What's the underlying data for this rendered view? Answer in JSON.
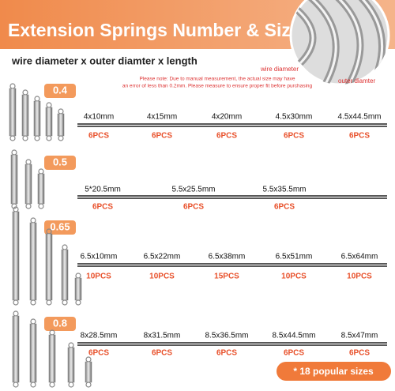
{
  "header": {
    "title": "Extension Springs Number & Size",
    "subtitle": "wire diameter x outer diamter x length",
    "callouts": [
      "wire diameter",
      "outer diamter"
    ],
    "note": [
      "Please note: Due to manual measurement, the actual size may have",
      "an error of less than 0.2mm.  Please measure to ensure proper fit before purchasing"
    ]
  },
  "groups": [
    {
      "wire": "0.4",
      "sizes": [
        "4x10mm",
        "4x15mm",
        "4x20mm",
        "4.5x30mm",
        "4.5x44.5mm"
      ],
      "counts": [
        "6PCS",
        "6PCS",
        "6PCS",
        "6PCS",
        "6PCS"
      ]
    },
    {
      "wire": "0.5",
      "sizes": [
        "5*20.5mm",
        "5.5x25.5mm",
        "5.5x35.5mm"
      ],
      "counts": [
        "6PCS",
        "6PCS",
        "6PCS"
      ]
    },
    {
      "wire": "0.65",
      "sizes": [
        "6.5x10mm",
        "6.5x22mm",
        "6.5x38mm",
        "6.5x51mm",
        "6.5x64mm"
      ],
      "counts": [
        "10PCS",
        "10PCS",
        "15PCS",
        "10PCS",
        "10PCS"
      ]
    },
    {
      "wire": "0.8",
      "sizes": [
        "8x28.5mm",
        "8x31.5mm",
        "8.5x36.5mm",
        "8.5x44.5mm",
        "8.5x47mm"
      ],
      "counts": [
        "6PCS",
        "6PCS",
        "6PCS",
        "6PCS",
        "6PCS"
      ]
    }
  ],
  "badge": "* 18 popular sizes"
}
